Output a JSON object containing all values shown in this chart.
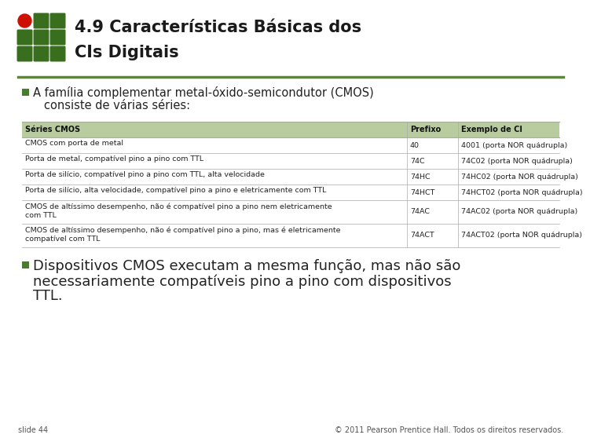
{
  "title_line1": "4.9 Características Básicas dos",
  "title_line2": "CIs Digitais",
  "slide_label": "slide 44",
  "copyright": "© 2011 Pearson Prentice Hall. Todos os direitos reservados.",
  "table_header": [
    "Séries CMOS",
    "Prefixo",
    "Exemplo de CI"
  ],
  "table_rows": [
    [
      "CMOS com porta de metal",
      "40",
      "4001 (porta NOR quádrupla)"
    ],
    [
      "Porta de metal, compatível pino a pino com TTL",
      "74C",
      "74C02 (porta NOR quádrupla)"
    ],
    [
      "Porta de silício, compatível pino a pino com TTL, alta velocidade",
      "74HC",
      "74HC02 (porta NOR quádrupla)"
    ],
    [
      "Porta de silício, alta velocidade, compatível pino a pino e eletricamente com TTL",
      "74HCT",
      "74HCT02 (porta NOR quádrupla)"
    ],
    [
      "CMOS de altíssimo desempenho, não é compatível pino a pino nem eletricamente\ncom TTL",
      "74AC",
      "74AC02 (porta NOR quádrupla)"
    ],
    [
      "CMOS de altíssimo desempenho, não é compatível pino a pino, mas é eletricamente\ncompatível com TTL",
      "74ACT",
      "74ACT02 (porta NOR quádrupla)"
    ]
  ],
  "bullet1_line1": "A família complementar metal-óxido-semicondutor (CMOS)",
  "bullet1_line2": "consiste de várias séries:",
  "bullet2_line1": "Dispositivos CMOS executam a mesma função, mas não são",
  "bullet2_line2": "necessariamente compatíveis pino a pino com dispositivos",
  "bullet2_line3": "TTL.",
  "bg_color": "#ffffff",
  "title_color": "#1a1a1a",
  "bullet_square_color": "#4a7c2f",
  "header_bg_color": "#b8cca0",
  "table_border_color": "#aaaaaa",
  "green_dark": "#3a6e1f",
  "red_color": "#cc1100",
  "divider_color": "#5a8a30",
  "footer_color": "#555555",
  "text_color": "#222222"
}
